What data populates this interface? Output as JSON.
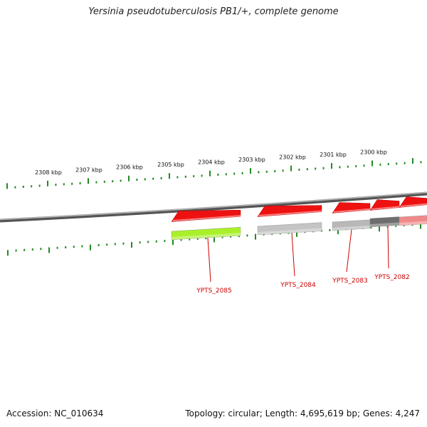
{
  "title": "Yersinia pseudotuberculosis PB1/+, complete genome",
  "footer": {
    "accession": "Accession: NC_010634",
    "stats": "Topology: circular; Length: 4,695,619 bp; Genes: 4,247"
  },
  "scale_labels": [
    "2308 kbp",
    "2307 kbp",
    "2306 kbp",
    "2305 kbp",
    "2304 kbp",
    "2303 kbp",
    "2302 kbp",
    "2301 kbp",
    "2300 kbp"
  ],
  "genes": [
    {
      "name": "YPTS_2085",
      "cds_color": "#aaf02a"
    },
    {
      "name": "YPTS_2084",
      "cds_color": "#c4c4c4"
    },
    {
      "name": "YPTS_2083",
      "cds_color": "#b8b8b8"
    },
    {
      "name": "YPTS_2082",
      "cds_color": "#6e6e6e"
    },
    {
      "name": "",
      "cds_color": "#f08a8a"
    }
  ],
  "colors": {
    "gene_arrow": "#ee1111",
    "tick": "#228b22",
    "backbone": "#7a7a7a",
    "label": "#cc0000"
  }
}
